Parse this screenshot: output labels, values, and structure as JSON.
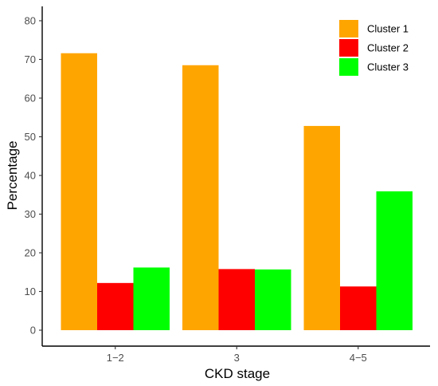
{
  "chart_data": {
    "type": "bar",
    "categories": [
      "1−2",
      "3",
      "4−5"
    ],
    "series": [
      {
        "name": "Cluster 1",
        "color": "#FFA500",
        "values": [
          71.6,
          68.5,
          52.8
        ]
      },
      {
        "name": "Cluster 2",
        "color": "#FF0000",
        "values": [
          12.2,
          15.8,
          11.3
        ]
      },
      {
        "name": "Cluster 3",
        "color": "#00FF00",
        "values": [
          16.2,
          15.7,
          35.9
        ]
      }
    ],
    "xlabel": "CKD stage",
    "ylabel": "Percentage",
    "ylim": [
      0,
      80
    ],
    "yticks": [
      0,
      10,
      20,
      30,
      40,
      50,
      60,
      70,
      80
    ],
    "grid": false,
    "legend_position": "top-right"
  }
}
